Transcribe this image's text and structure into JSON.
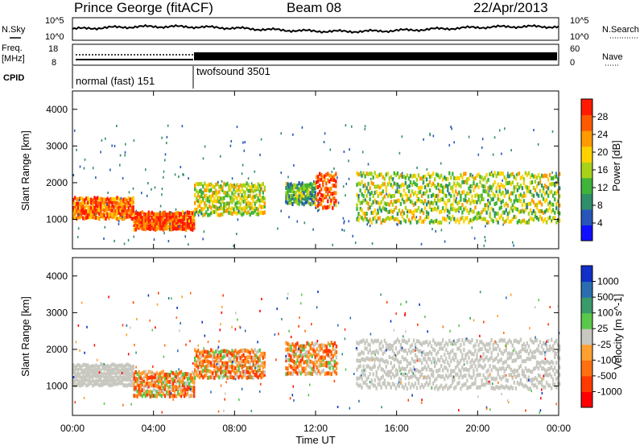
{
  "header": {
    "station": "Prince George (fitACF)",
    "beam": "Beam 08",
    "date": "22/Apr/2013"
  },
  "meta_panels": {
    "nsky_label": "N.Sky",
    "nsearch_label": "N.Search",
    "log_tick_top": "10^5",
    "log_tick_bottom": "10^0",
    "freq_label_line1": "Freq.",
    "freq_label_line2": "[MHz]",
    "freq_ticks": [
      "18",
      "8"
    ],
    "nave_label": "Nave",
    "nave_ticks": [
      "60",
      "0"
    ],
    "cpid_label": "CPID",
    "cpid_segments": [
      {
        "label": "normal (fast) 151",
        "start_hour": 0,
        "end_hour": 6
      },
      {
        "label": "twofsound 3501",
        "start_hour": 6,
        "end_hour": 24
      }
    ]
  },
  "chart_data": [
    {
      "type": "heatmap",
      "name": "power",
      "ylabel": "Slant Range [km]",
      "xlabel": "",
      "xlim": [
        0,
        24
      ],
      "ylim": [
        200,
        4500
      ],
      "yticks": [
        1000,
        2000,
        3000,
        4000
      ],
      "colorbar": {
        "label": "Power [dB]",
        "ticks": [
          4,
          8,
          12,
          16,
          20,
          24,
          28
        ],
        "range": [
          0,
          32
        ],
        "colors": [
          "#1010ff",
          "#2856b8",
          "#2f8f6a",
          "#3fb33a",
          "#a8d21a",
          "#ffd200",
          "#ff9a00",
          "#ff5a00",
          "#ff1a00"
        ]
      },
      "echo_bands": [
        {
          "start_hour": 0,
          "end_hour": 3,
          "range_km": [
            1000,
            1600
          ],
          "power_db": 26
        },
        {
          "start_hour": 3,
          "end_hour": 6,
          "range_km": [
            700,
            1200
          ],
          "power_db": 28
        },
        {
          "start_hour": 6,
          "end_hour": 9.5,
          "range_km": [
            1100,
            2000
          ],
          "power_db": 18
        },
        {
          "start_hour": 10.5,
          "end_hour": 12,
          "range_km": [
            1400,
            2000
          ],
          "power_db": 12
        },
        {
          "start_hour": 12,
          "end_hour": 13,
          "range_km": [
            1300,
            2300
          ],
          "power_db": 28
        },
        {
          "start_hour": 14,
          "end_hour": 24,
          "range_km": [
            900,
            2300
          ],
          "power_db": 16
        }
      ]
    },
    {
      "type": "heatmap",
      "name": "velocity",
      "ylabel": "Slant Range [km]",
      "xlabel": "Time UT",
      "xlim": [
        0,
        24
      ],
      "ylim": [
        200,
        4500
      ],
      "yticks": [
        1000,
        2000,
        3000,
        4000
      ],
      "xticks": [
        "00:00",
        "04:00",
        "08:00",
        "12:00",
        "16:00",
        "20:00",
        "00:00"
      ],
      "xtick_hours": [
        0,
        4,
        8,
        12,
        16,
        20,
        24
      ],
      "colorbar": {
        "label": "Velocity [m s^-1]",
        "ticks": [
          "1000",
          "500",
          "100",
          "25",
          "-25",
          "-100",
          "-500",
          "-1000"
        ],
        "colors": [
          "#1030c8",
          "#2a6eb0",
          "#3a9a6a",
          "#5ac84a",
          "#c8c8c0",
          "#ffa030",
          "#ff7010",
          "#ff3a00",
          "#ff0000"
        ]
      },
      "echo_bands": [
        {
          "start_hour": 0,
          "end_hour": 3,
          "range_km": [
            1000,
            1600
          ],
          "velocity_ms": 0
        },
        {
          "start_hour": 3,
          "end_hour": 6,
          "range_km": [
            700,
            1400
          ],
          "velocity_ms": -300
        },
        {
          "start_hour": 6,
          "end_hour": 9.5,
          "range_km": [
            1200,
            2000
          ],
          "velocity_ms": -200
        },
        {
          "start_hour": 10.5,
          "end_hour": 13,
          "range_km": [
            1300,
            2200
          ],
          "velocity_ms": -150
        },
        {
          "start_hour": 14,
          "end_hour": 24,
          "range_km": [
            900,
            2300
          ],
          "velocity_ms": 0
        }
      ]
    }
  ]
}
